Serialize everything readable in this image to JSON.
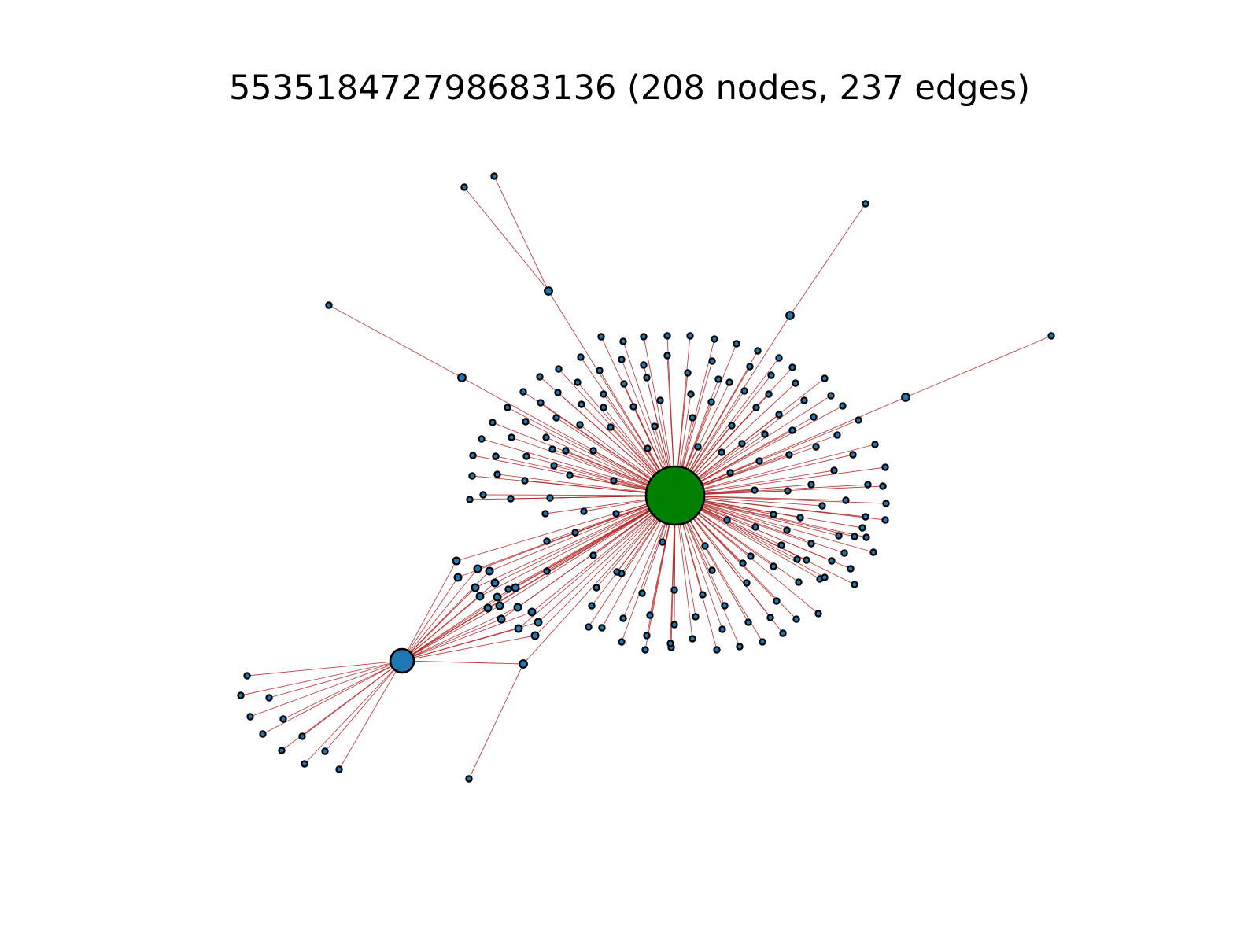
{
  "title": "553518472798683136 (208 nodes, 237 edges)",
  "graph": {
    "node_count": 208,
    "edge_count": 237,
    "colors": {
      "hub_primary": "#008000",
      "hub_secondary": "#1f77b4",
      "node_fill": "#1f77b4",
      "node_stroke": "#000000",
      "edge": "#b22222"
    },
    "hubs": [
      {
        "id": "hub-primary",
        "kind": "primary"
      },
      {
        "id": "hub-secondary",
        "kind": "secondary"
      }
    ]
  }
}
